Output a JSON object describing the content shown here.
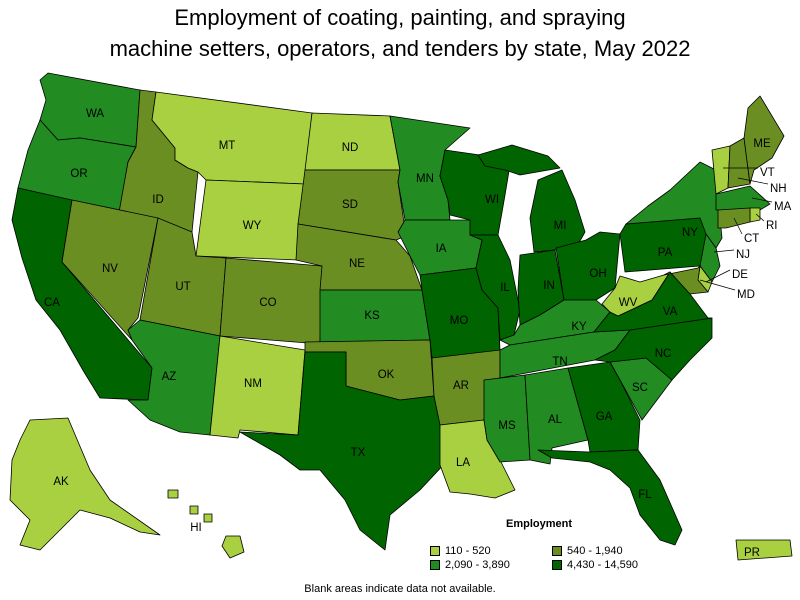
{
  "title": {
    "line1": "Employment of coating, painting, and spraying",
    "line2": "machine setters, operators, and tenders by state, May 2022"
  },
  "legend": {
    "title": "Employment",
    "bins": [
      {
        "label": "110 - 520",
        "color": "#a8d040"
      },
      {
        "label": "540 - 1,940",
        "color": "#6b8e23"
      },
      {
        "label": "2,090 - 3,890",
        "color": "#228b22"
      },
      {
        "label": "4,430 - 14,590",
        "color": "#006400"
      }
    ]
  },
  "footnote": "Blank areas indicate data not available.",
  "states": [
    {
      "abbr": "WA",
      "bin": 2
    },
    {
      "abbr": "OR",
      "bin": 2
    },
    {
      "abbr": "CA",
      "bin": 3
    },
    {
      "abbr": "ID",
      "bin": 1
    },
    {
      "abbr": "NV",
      "bin": 1
    },
    {
      "abbr": "MT",
      "bin": 0
    },
    {
      "abbr": "WY",
      "bin": 0
    },
    {
      "abbr": "UT",
      "bin": 1
    },
    {
      "abbr": "AZ",
      "bin": 2
    },
    {
      "abbr": "CO",
      "bin": 1
    },
    {
      "abbr": "NM",
      "bin": 0
    },
    {
      "abbr": "ND",
      "bin": 0
    },
    {
      "abbr": "SD",
      "bin": 1
    },
    {
      "abbr": "NE",
      "bin": 1
    },
    {
      "abbr": "KS",
      "bin": 2
    },
    {
      "abbr": "OK",
      "bin": 1
    },
    {
      "abbr": "TX",
      "bin": 3
    },
    {
      "abbr": "MN",
      "bin": 2
    },
    {
      "abbr": "IA",
      "bin": 2
    },
    {
      "abbr": "MO",
      "bin": 3
    },
    {
      "abbr": "AR",
      "bin": 1
    },
    {
      "abbr": "LA",
      "bin": 0
    },
    {
      "abbr": "WI",
      "bin": 3
    },
    {
      "abbr": "IL",
      "bin": 3
    },
    {
      "abbr": "MI",
      "bin": 3
    },
    {
      "abbr": "IN",
      "bin": 3
    },
    {
      "abbr": "OH",
      "bin": 3
    },
    {
      "abbr": "KY",
      "bin": 2
    },
    {
      "abbr": "TN",
      "bin": 2
    },
    {
      "abbr": "MS",
      "bin": 2
    },
    {
      "abbr": "AL",
      "bin": 2
    },
    {
      "abbr": "GA",
      "bin": 3
    },
    {
      "abbr": "FL",
      "bin": 3
    },
    {
      "abbr": "SC",
      "bin": 2
    },
    {
      "abbr": "NC",
      "bin": 3
    },
    {
      "abbr": "VA",
      "bin": 3
    },
    {
      "abbr": "WV",
      "bin": 0
    },
    {
      "abbr": "PA",
      "bin": 3
    },
    {
      "abbr": "NY",
      "bin": 2
    },
    {
      "abbr": "VT",
      "bin": 0
    },
    {
      "abbr": "NH",
      "bin": 1
    },
    {
      "abbr": "ME",
      "bin": 1
    },
    {
      "abbr": "MA",
      "bin": 2
    },
    {
      "abbr": "RI",
      "bin": 0
    },
    {
      "abbr": "CT",
      "bin": 1
    },
    {
      "abbr": "NJ",
      "bin": 2
    },
    {
      "abbr": "DE",
      "bin": 0
    },
    {
      "abbr": "MD",
      "bin": 1
    },
    {
      "abbr": "AK",
      "bin": 0
    },
    {
      "abbr": "HI",
      "bin": 0
    },
    {
      "abbr": "PR",
      "bin": 0
    }
  ]
}
